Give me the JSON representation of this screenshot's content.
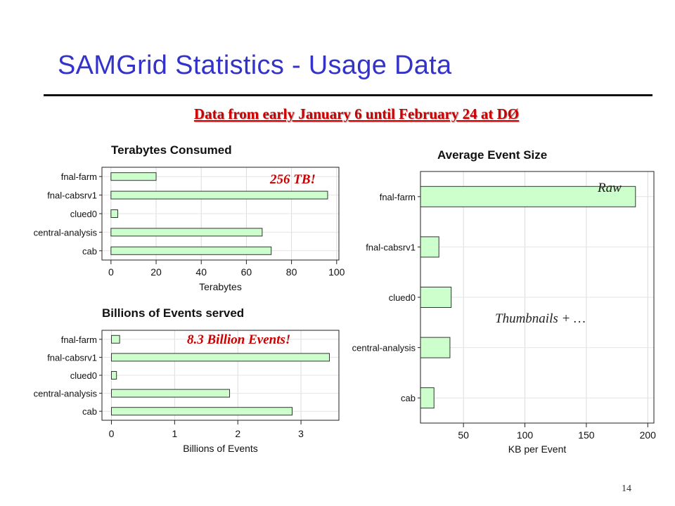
{
  "slide": {
    "title": "SAMGrid Statistics - Usage Data",
    "subtitle": "Data from early January 6 until February 24 at DØ",
    "page_number": "14"
  },
  "colors": {
    "title": "#3333cc",
    "callout": "#cc0000",
    "bar_fill": "#ccffcc",
    "bar_stroke": "#333333"
  },
  "callouts": {
    "terabytes": "256 TB!",
    "events": "8.3 Billion Events!",
    "raw": "Raw",
    "thumbnails": "Thumbnails + …"
  },
  "chart_data": [
    {
      "type": "bar",
      "orientation": "horizontal",
      "title": "Terabytes Consumed",
      "xlabel": "Terabytes",
      "ylabel": "",
      "categories": [
        "fnal-farm",
        "fnal-cabsrv1",
        "clued0",
        "central-analysis",
        "cab"
      ],
      "values": [
        20,
        96,
        3,
        67,
        71
      ],
      "xlim": [
        -4,
        101
      ],
      "xticks": [
        0,
        20,
        40,
        60,
        80,
        100
      ],
      "grid": true
    },
    {
      "type": "bar",
      "orientation": "horizontal",
      "title": "Billions of Events served",
      "xlabel": "Billions of Events",
      "ylabel": "",
      "categories": [
        "fnal-farm",
        "fnal-cabsrv1",
        "clued0",
        "central-analysis",
        "cab"
      ],
      "values": [
        0.13,
        3.45,
        0.08,
        1.87,
        2.86
      ],
      "xlim": [
        -0.15,
        3.6
      ],
      "xticks": [
        0,
        1,
        2,
        3
      ],
      "grid": true
    },
    {
      "type": "bar",
      "orientation": "horizontal",
      "title": "Average Event Size",
      "xlabel": "KB per Event",
      "ylabel": "",
      "categories": [
        "fnal-farm",
        "fnal-cabsrv1",
        "clued0",
        "central-analysis",
        "cab"
      ],
      "values": [
        190,
        30,
        40,
        39,
        26
      ],
      "xlim": [
        15,
        205
      ],
      "xticks": [
        50,
        100,
        150,
        200
      ],
      "grid": true
    }
  ]
}
